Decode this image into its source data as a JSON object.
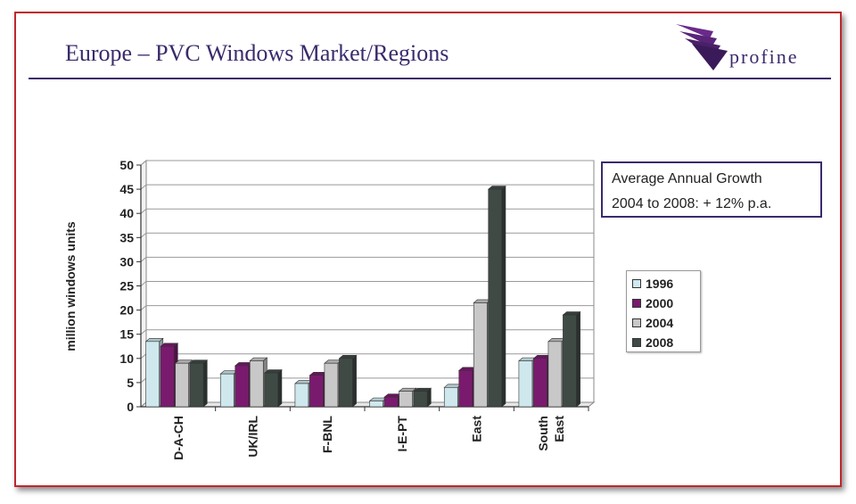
{
  "slide": {
    "title": "Europe – PVC Windows Market/Regions",
    "logo_text": "profine",
    "growth_line1": "Average Annual Growth",
    "growth_line2": "2004 to 2008: + 12% p.a."
  },
  "colors": {
    "frame": "#c0272d",
    "title": "#3b2a6b"
  },
  "chart_data": {
    "type": "bar",
    "ylabel": "million windows units",
    "xlabel": "",
    "ylim": [
      0,
      50
    ],
    "yticks": [
      0,
      5,
      10,
      15,
      20,
      25,
      30,
      35,
      40,
      45,
      50
    ],
    "grid": true,
    "legend_position": "right",
    "categories": [
      "D-A-CH",
      "UK/IRL",
      "F-BNL",
      "I-E-PT",
      "East",
      "South East"
    ],
    "category_lines": [
      [
        "D-A-CH"
      ],
      [
        "UK/IRL"
      ],
      [
        "F-BNL"
      ],
      [
        "I-E-PT"
      ],
      [
        "East"
      ],
      [
        "South",
        "East"
      ]
    ],
    "series": [
      {
        "name": "1996",
        "color": "#cfe8ee",
        "values": [
          13.5,
          6.8,
          4.8,
          1.2,
          4.0,
          9.5
        ]
      },
      {
        "name": "2000",
        "color": "#7a1a6e",
        "values": [
          12.5,
          8.5,
          6.5,
          2.0,
          7.5,
          10.0
        ]
      },
      {
        "name": "2004",
        "color": "#c8c8c8",
        "values": [
          9.0,
          9.5,
          9.0,
          3.2,
          21.5,
          13.5
        ]
      },
      {
        "name": "2008",
        "color": "#3f4a45",
        "values": [
          9.0,
          7.0,
          10.0,
          3.2,
          45.0,
          19.0
        ]
      }
    ]
  }
}
